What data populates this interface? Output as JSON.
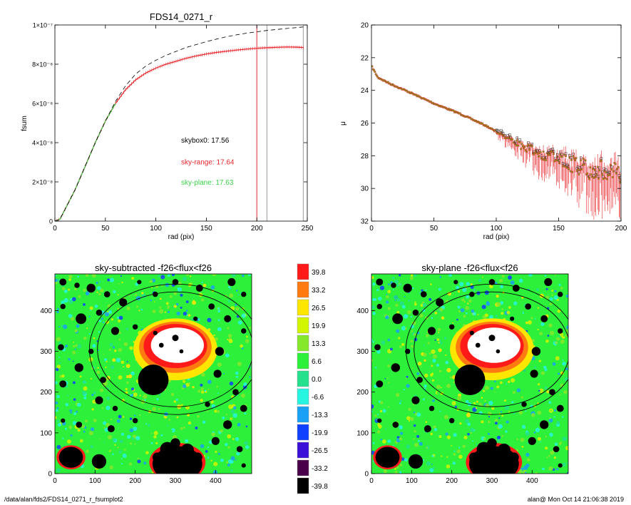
{
  "footer": {
    "path": "/data/alan/fds2/FDS14_0271_r_fsumplot2",
    "stamp": "alan@  Mon Oct 14 21:06:38 2019"
  },
  "colors": {
    "skybox0": "#000000",
    "sky_range": "#e8262b",
    "sky_plane": "#3ad14a",
    "model_dashed": "#000000",
    "reference_lines": "#999999"
  },
  "chart_data": [
    {
      "id": "growth-curve",
      "type": "line",
      "title": "FDS14_0271_r",
      "xlabel": "rad (pix)",
      "ylabel": "fsum",
      "xlim": [
        0,
        250
      ],
      "ylim": [
        0,
        1e-07
      ],
      "xticks": [
        0,
        50,
        100,
        150,
        200,
        250
      ],
      "yticks": [
        {
          "v": 0,
          "label": "0"
        },
        {
          "v": 2e-08,
          "label": "2×10⁻⁸"
        },
        {
          "v": 4e-08,
          "label": "4×10⁻⁸"
        },
        {
          "v": 6e-08,
          "label": "6×10⁻⁸"
        },
        {
          "v": 8e-08,
          "label": "8×10⁻⁸"
        },
        {
          "v": 1e-07,
          "label": "1×10⁻⁷"
        }
      ],
      "x": [
        0,
        5,
        10,
        20,
        30,
        40,
        50,
        60,
        70,
        80,
        90,
        100,
        110,
        120,
        130,
        140,
        150,
        160,
        170,
        180,
        190,
        200,
        210,
        220,
        230,
        240,
        246
      ],
      "series": [
        {
          "key": "sky_range",
          "y": [
            0,
            1e-09,
            6e-09,
            1.6e-08,
            2.8e-08,
            4e-08,
            5.1e-08,
            6e-08,
            6.7e-08,
            7.2e-08,
            7.55e-08,
            7.8e-08,
            8e-08,
            8.15e-08,
            8.3e-08,
            8.42e-08,
            8.52e-08,
            8.6e-08,
            8.66e-08,
            8.72e-08,
            8.77e-08,
            8.81e-08,
            8.84e-08,
            8.86e-08,
            8.88e-08,
            8.87e-08,
            8.85e-08
          ]
        },
        {
          "key": "sky_plane",
          "y": [
            0,
            1e-09,
            6e-09,
            1.6e-08,
            2.8e-08,
            4e-08,
            5.1e-08,
            6e-08,
            6.7e-08,
            7.2e-08,
            7.55e-08,
            7.8e-08,
            8e-08,
            8.15e-08,
            8.3e-08,
            8.42e-08,
            8.52e-08,
            8.6e-08,
            8.66e-08,
            8.72e-08,
            8.77e-08,
            8.81e-08,
            8.84e-08,
            8.86e-08,
            8.88e-08,
            8.87e-08,
            8.85e-08
          ]
        },
        {
          "key": "skybox0",
          "dashed": true,
          "y": [
            0,
            1e-09,
            6e-09,
            1.6e-08,
            2.8e-08,
            4e-08,
            5.1e-08,
            6.1e-08,
            6.9e-08,
            7.5e-08,
            7.9e-08,
            8.2e-08,
            8.45e-08,
            8.65e-08,
            8.85e-08,
            9e-08,
            9.15e-08,
            9.28e-08,
            9.4e-08,
            9.5e-08,
            9.58e-08,
            9.65e-08,
            9.72e-08,
            9.77e-08,
            9.82e-08,
            9.87e-08,
            9.9e-08
          ]
        }
      ],
      "vlines": [
        {
          "x": 200,
          "key": "sky_range"
        },
        {
          "x": 210,
          "key": "reference_lines"
        },
        {
          "x": 246,
          "key": "reference_lines"
        }
      ],
      "annotations": [
        {
          "text": "skybox0: 17.56",
          "key": "skybox0",
          "x": 125,
          "y": 4e-08
        },
        {
          "text": "sky-range: 17.64",
          "key": "sky_range",
          "x": 125,
          "y": 2.9e-08
        },
        {
          "text": "sky-plane: 17.63",
          "key": "sky_plane",
          "x": 125,
          "y": 1.85e-08
        }
      ]
    },
    {
      "id": "surface-brightness",
      "type": "scatter",
      "title": "",
      "xlabel": "rad (pix)",
      "ylabel": "μ",
      "xlim": [
        0,
        200
      ],
      "ylim": [
        32,
        20
      ],
      "xticks": [
        0,
        50,
        100,
        150,
        200
      ],
      "yticks": [
        20,
        22,
        24,
        26,
        28,
        30,
        32
      ],
      "profile_knots": [
        [
          0,
          22.5
        ],
        [
          5,
          23.2
        ],
        [
          15,
          23.6
        ],
        [
          30,
          24.1
        ],
        [
          50,
          24.8
        ],
        [
          70,
          25.4
        ],
        [
          90,
          26.1
        ],
        [
          105,
          26.7
        ],
        [
          120,
          27.4
        ],
        [
          140,
          28.0
        ],
        [
          160,
          28.5
        ],
        [
          180,
          28.9
        ],
        [
          200,
          29.2
        ]
      ]
    },
    {
      "id": "sky-subtracted",
      "type": "heatmap",
      "title": "sky-subtracted -f26<flux<f26",
      "xlim": [
        0,
        490
      ],
      "ylim": [
        0,
        490
      ],
      "xticks": [
        0,
        100,
        200,
        300,
        400
      ],
      "yticks": [
        0,
        100,
        200,
        300,
        400
      ]
    },
    {
      "id": "sky-plane",
      "type": "heatmap",
      "title": "sky-plane -f26<flux<f26",
      "xlim": [
        0,
        490
      ],
      "ylim": [
        0,
        490
      ],
      "xticks": [
        0,
        100,
        200,
        300,
        400
      ],
      "yticks": [
        0,
        100,
        200,
        300,
        400
      ]
    }
  ],
  "colorbar": {
    "labels": [
      "39.8",
      "33.2",
      "26.5",
      "19.9",
      "13.3",
      "6.6",
      "0.0",
      "-6.6",
      "-13.3",
      "-19.9",
      "-26.5",
      "-33.2",
      "-39.8"
    ],
    "colors": [
      "#ff1a1a",
      "#ff7a10",
      "#ffe600",
      "#d2f500",
      "#86e82a",
      "#2cf03a",
      "#25e08c",
      "#26f5e0",
      "#1aa0f5",
      "#1040ff",
      "#3a10d8",
      "#4a004a",
      "#000000"
    ]
  }
}
